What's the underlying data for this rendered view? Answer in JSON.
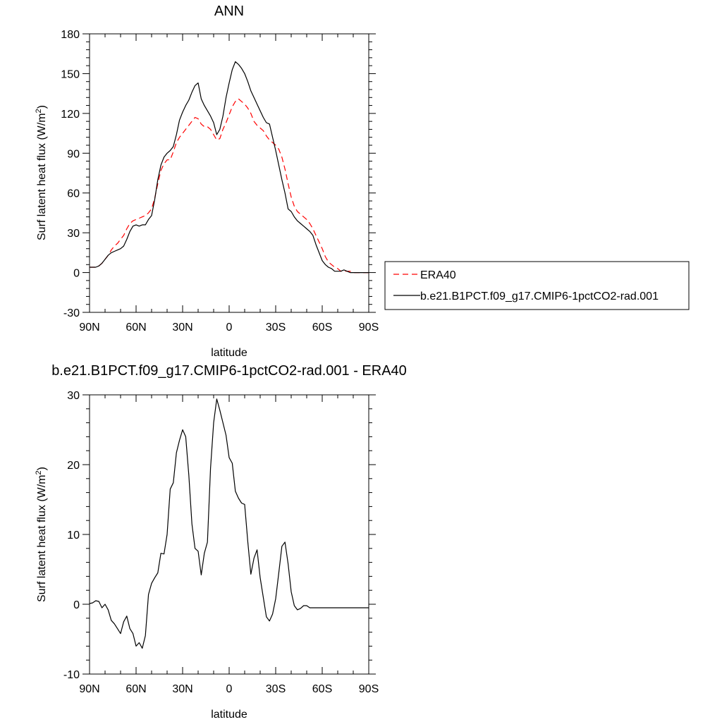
{
  "chart_data": [
    {
      "type": "line",
      "title": "ANN",
      "xlabel": "latitude",
      "ylabel": "Surf latent heat flux (W/m",
      "ylabel_sup": "2",
      "ylabel_end": ")",
      "xlim": [
        90,
        -90
      ],
      "ylim": [
        -30,
        180
      ],
      "xticks": [
        90,
        60,
        30,
        0,
        -30,
        -60,
        -90
      ],
      "xticklabels": [
        "90N",
        "60N",
        "30N",
        "0",
        "30S",
        "60S",
        "90S"
      ],
      "yticks": [
        -30,
        0,
        30,
        60,
        90,
        120,
        150,
        180
      ],
      "yticklabels": [
        "-30",
        "0",
        "30",
        "60",
        "90",
        "120",
        "150",
        "180"
      ],
      "legend": {
        "placement": "right",
        "entries": [
          "ERA40",
          "b.e21.B1PCT.f09_g17.CMIP6-1pctCO2-rad.001"
        ]
      },
      "series": [
        {
          "name": "ERA40",
          "color": "#ff0000",
          "dash": "dashed",
          "x": [
            90,
            88,
            86,
            84,
            82,
            80,
            78,
            76,
            74,
            72,
            70,
            68,
            66,
            64,
            62,
            60,
            58,
            56,
            54,
            52,
            50,
            48,
            46,
            44,
            42,
            40,
            38,
            36,
            34,
            32,
            30,
            28,
            26,
            24,
            22,
            20,
            18,
            16,
            14,
            12,
            10,
            8,
            6,
            4,
            2,
            0,
            -2,
            -4,
            -6,
            -8,
            -10,
            -12,
            -14,
            -16,
            -18,
            -20,
            -22,
            -24,
            -26,
            -28,
            -30,
            -32,
            -34,
            -36,
            -38,
            -40,
            -42,
            -44,
            -46,
            -48,
            -50,
            -52,
            -54,
            -56,
            -58,
            -60,
            -62,
            -64,
            -66,
            -68,
            -70,
            -72,
            -74,
            -76,
            -78,
            -80,
            -82,
            -84,
            -86,
            -88,
            -90
          ],
          "y": [
            4,
            4,
            4,
            5,
            7,
            10,
            13,
            17,
            20,
            22,
            25,
            28,
            33,
            37,
            39,
            40,
            41,
            42,
            43,
            45,
            48,
            56,
            67,
            77,
            82,
            85,
            85,
            91,
            98,
            102,
            105,
            108,
            111,
            114,
            117,
            116,
            112,
            110,
            110,
            108,
            104,
            100,
            101,
            108,
            113,
            119,
            125,
            129,
            131,
            129,
            127,
            124,
            120,
            114,
            111,
            109,
            107,
            103,
            100,
            98,
            96,
            93,
            87,
            78,
            67,
            57,
            50,
            46,
            44,
            42,
            40,
            37,
            33,
            28,
            23,
            18,
            12,
            8,
            6,
            4,
            3,
            1,
            1,
            1,
            1,
            0,
            0,
            0,
            0,
            0,
            0
          ]
        },
        {
          "name": "b.e21.B1PCT.f09_g17.CMIP6-1pctCO2-rad.001",
          "color": "#000000",
          "dash": "solid",
          "x": [
            90,
            88,
            86,
            84,
            82,
            80,
            78,
            76,
            74,
            72,
            70,
            68,
            66,
            64,
            62,
            60,
            58,
            56,
            54,
            52,
            50,
            48,
            46,
            44,
            42,
            40,
            38,
            36,
            34,
            32,
            30,
            28,
            26,
            24,
            22,
            20,
            18,
            16,
            14,
            12,
            10,
            8,
            6,
            4,
            2,
            0,
            -2,
            -4,
            -6,
            -8,
            -10,
            -12,
            -14,
            -16,
            -18,
            -20,
            -22,
            -24,
            -26,
            -28,
            -30,
            -32,
            -34,
            -36,
            -38,
            -40,
            -42,
            -44,
            -46,
            -48,
            -50,
            -52,
            -54,
            -56,
            -58,
            -60,
            -62,
            -64,
            -66,
            -68,
            -70,
            -72,
            -74,
            -76,
            -78,
            -80,
            -82,
            -84,
            -86,
            -88,
            -90
          ],
          "y": [
            4,
            4,
            4,
            5,
            7,
            10,
            13,
            15,
            16,
            17,
            18,
            20,
            25,
            31,
            35,
            36,
            35,
            36,
            36,
            40,
            43,
            55,
            70,
            81,
            87,
            90,
            92,
            95,
            104,
            115,
            121,
            126,
            130,
            136,
            141,
            143,
            131,
            126,
            122,
            118,
            113,
            104,
            108,
            118,
            132,
            143,
            153,
            159,
            157,
            154,
            150,
            144,
            137,
            132,
            127,
            122,
            117,
            113,
            112,
            102,
            92,
            81,
            70,
            60,
            48,
            46,
            42,
            39,
            37,
            35,
            33,
            31,
            28,
            21,
            15,
            9,
            6,
            4,
            3,
            1,
            1,
            1,
            2,
            1,
            0,
            0,
            0,
            0,
            0,
            0,
            0
          ]
        }
      ]
    },
    {
      "type": "line",
      "title": "b.e21.B1PCT.f09_g17.CMIP6-1pctCO2-rad.001 - ERA40",
      "xlabel": "latitude",
      "ylabel": "Surf latent heat flux (W/m",
      "ylabel_sup": "2",
      "ylabel_end": ")",
      "xlim": [
        90,
        -90
      ],
      "ylim": [
        -10,
        30
      ],
      "xticks": [
        90,
        60,
        30,
        0,
        -30,
        -60,
        -90
      ],
      "xticklabels": [
        "90N",
        "60N",
        "30N",
        "0",
        "30S",
        "60S",
        "90S"
      ],
      "yticks": [
        -10,
        0,
        10,
        20,
        30
      ],
      "yticklabels": [
        "-10",
        "0",
        "10",
        "20",
        "30"
      ],
      "series": [
        {
          "color": "#000000",
          "dash": "solid",
          "x": [
            90,
            88,
            86,
            84,
            82,
            80,
            78,
            76,
            74,
            72,
            70,
            68,
            66,
            64,
            62,
            60,
            58,
            56,
            54,
            52,
            50,
            48,
            46,
            44,
            42,
            40,
            38,
            36,
            34,
            32,
            30,
            28,
            26,
            24,
            22,
            20,
            18,
            16,
            14,
            12,
            10,
            8,
            6,
            4,
            2,
            0,
            -2,
            -4,
            -6,
            -8,
            -10,
            -12,
            -14,
            -16,
            -18,
            -20,
            -22,
            -24,
            -26,
            -28,
            -30,
            -32,
            -34,
            -36,
            -38,
            -40,
            -42,
            -44,
            -46,
            -48,
            -50,
            -52,
            -54,
            -56,
            -58,
            -60,
            -62,
            -64,
            -66,
            -68,
            -70,
            -72,
            -74,
            -76,
            -78,
            -80,
            -82,
            -84,
            -86,
            -88,
            -90
          ],
          "y": [
            0.1,
            0.2,
            0.5,
            0.4,
            -0.5,
            0,
            -0.8,
            -2.3,
            -2.8,
            -3.5,
            -4.2,
            -2.5,
            -1.7,
            -3.5,
            -4.2,
            -6.0,
            -5.5,
            -6.3,
            -4.5,
            1.4,
            3.0,
            3.8,
            4.5,
            7.3,
            7.2,
            10.0,
            16.5,
            17.4,
            21.7,
            23.5,
            25.0,
            24.0,
            18.5,
            11.5,
            8.0,
            7.6,
            4.2,
            7.3,
            8.9,
            19.5,
            26.0,
            29.4,
            27.8,
            26.0,
            24.2,
            21.0,
            20.2,
            16.2,
            15.2,
            14.5,
            14.3,
            9.0,
            4.3,
            6.6,
            7.8,
            3.8,
            1.0,
            -1.8,
            -2.4,
            -1.4,
            0.8,
            4.5,
            8.3,
            8.9,
            5.8,
            1.8,
            -0.2,
            -0.8,
            -0.6,
            -0.2,
            -0.2,
            -0.5,
            -0.5,
            -0.5,
            -0.5,
            -0.5,
            -0.5,
            -0.5,
            -0.5,
            -0.5,
            -0.5,
            -0.5,
            -0.5,
            -0.5,
            -0.5,
            -0.5,
            -0.5,
            -0.5,
            -0.5,
            -0.5,
            -0.5
          ]
        }
      ]
    }
  ]
}
